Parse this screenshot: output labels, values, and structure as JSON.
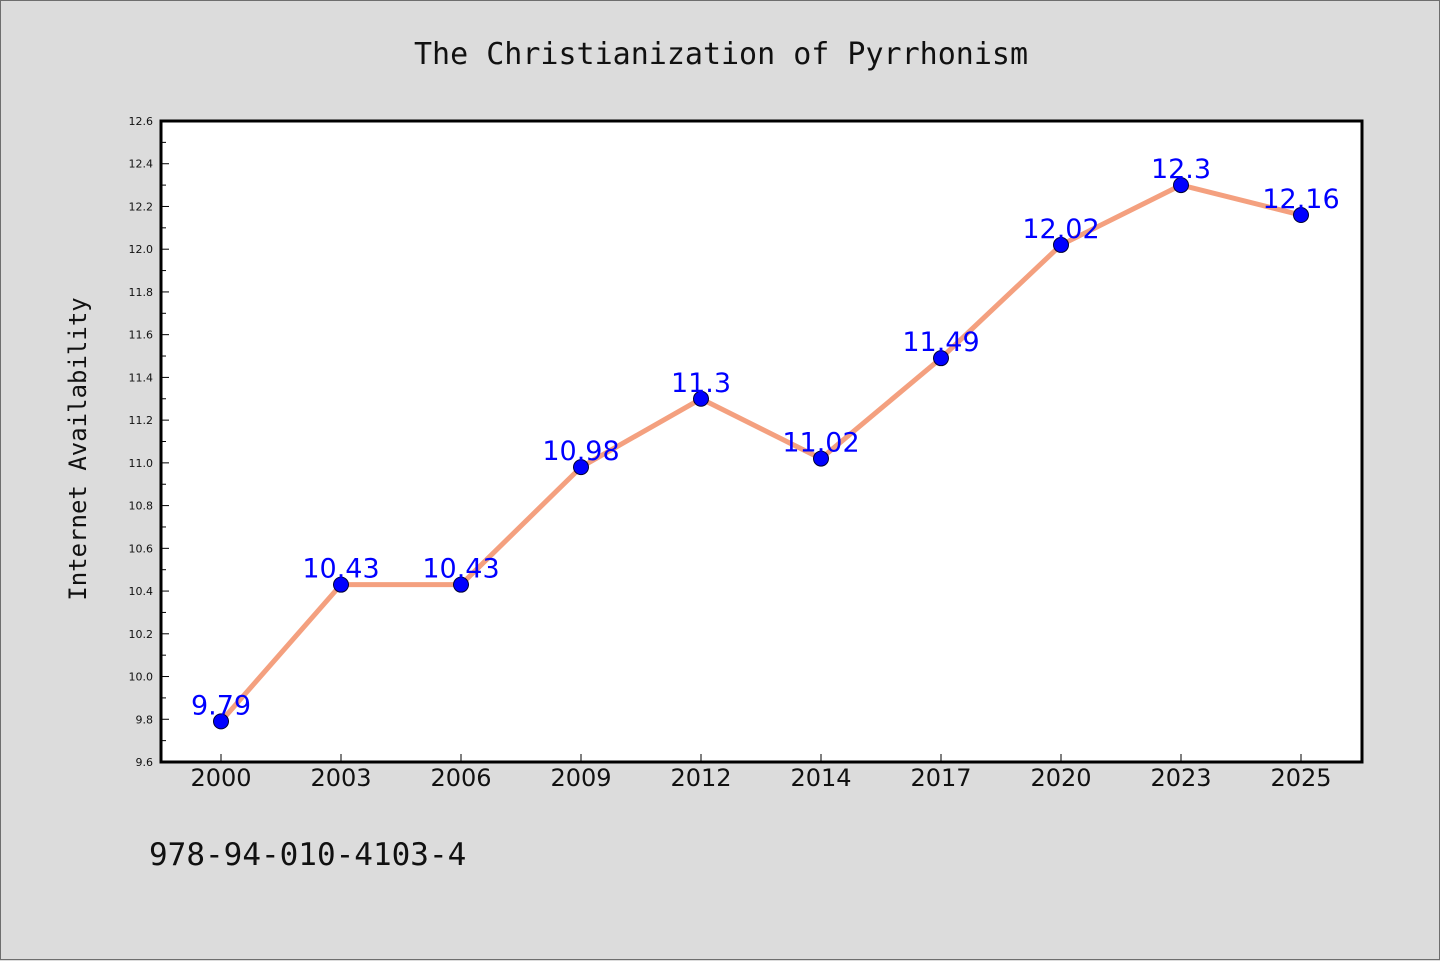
{
  "chart_data": {
    "type": "line",
    "title": "The Christianization of Pyrrhonism",
    "xlabel": "",
    "ylabel": "Internet Availability",
    "categories": [
      "2000",
      "2003",
      "2006",
      "2009",
      "2012",
      "2014",
      "2017",
      "2020",
      "2023",
      "2025"
    ],
    "values": [
      9.79,
      10.43,
      10.43,
      10.98,
      11.3,
      11.02,
      11.49,
      12.02,
      12.3,
      12.16
    ],
    "data_labels": [
      "9.79",
      "10.43",
      "10.43",
      "10.98",
      "11.3",
      "11.02",
      "11.49",
      "12.02",
      "12.3",
      "12.16"
    ],
    "ylim": [
      9.6,
      12.6
    ],
    "yticks": [
      "9.6",
      "9.8",
      "10.0",
      "10.2",
      "10.4",
      "10.6",
      "10.8",
      "11.0",
      "11.2",
      "11.4",
      "11.6",
      "11.8",
      "12.0",
      "12.2",
      "12.4",
      "12.6"
    ],
    "grid": false,
    "legend": "none",
    "colors": {
      "line": "#f4a07f",
      "marker": "#0000ff",
      "label": "#0000ff",
      "background": "#dcdcdc",
      "plot": "#ffffff"
    }
  },
  "footer": {
    "isbn": "978-94-010-4103-4"
  }
}
